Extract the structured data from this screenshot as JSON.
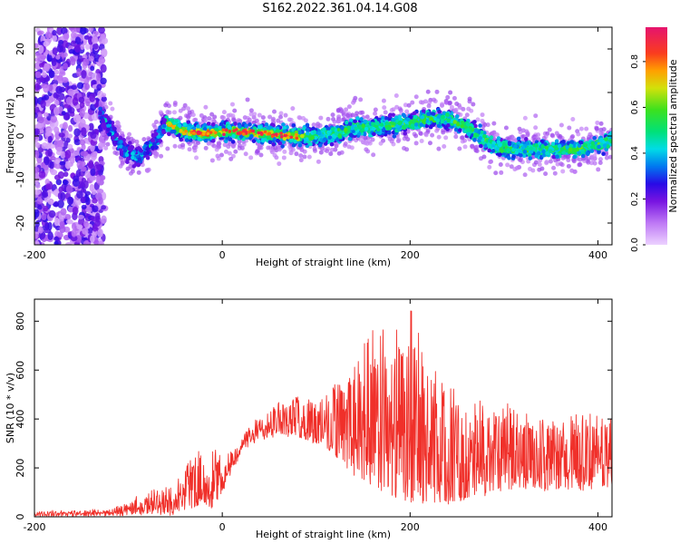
{
  "title": "S162.2022.361.04.14.G08",
  "chart_data": [
    {
      "type": "heatmap",
      "xlabel": "Height of straight line (km)",
      "ylabel": "Frequency (Hz)",
      "xlim": [
        -200,
        415
      ],
      "ylim": [
        -25,
        25
      ],
      "xticks": [
        -200,
        0,
        200,
        400
      ],
      "yticks": [
        -20,
        -10,
        0,
        10,
        20
      ],
      "colorbar": {
        "label": "Normalized spectral amplitude",
        "range": [
          0,
          0.95
        ],
        "ticks": [
          0.0,
          0.2,
          0.4,
          0.6,
          0.8
        ]
      },
      "ridge": {
        "x": [
          -130,
          -120,
          -110,
          -100,
          -90,
          -80,
          -70,
          -60,
          -50,
          -40,
          -20,
          0,
          20,
          50,
          80,
          100,
          120,
          140,
          160,
          180,
          200,
          220,
          240,
          260,
          280,
          300,
          320,
          340,
          360,
          380,
          400,
          415
        ],
        "frequency": [
          5,
          2,
          -2,
          -4,
          -5,
          -3,
          -1,
          3,
          2,
          1,
          0.5,
          1,
          1,
          0.5,
          0,
          0,
          0.5,
          2,
          2,
          2.5,
          3,
          4,
          4,
          2,
          -1,
          -3,
          -3,
          -3,
          -3,
          -3,
          -2,
          -1
        ]
      },
      "noise_region_x": [
        -200,
        -135
      ]
    },
    {
      "type": "line",
      "color": "#f0302a",
      "xlabel": "Height of straight line (km)",
      "ylabel": "SNR (10 * v/v)",
      "xlim": [
        -200,
        415
      ],
      "ylim": [
        0,
        890
      ],
      "xticks": [
        -200,
        0,
        200,
        400
      ],
      "yticks": [
        0,
        200,
        400,
        600,
        800
      ],
      "envelope": {
        "x": [
          -200,
          -120,
          -100,
          -80,
          -60,
          -40,
          -20,
          -10,
          0,
          20,
          40,
          60,
          80,
          100,
          120,
          140,
          160,
          180,
          200,
          220,
          240,
          260,
          280,
          300,
          320,
          340,
          360,
          380,
          400,
          415
        ],
        "baseline": [
          10,
          10,
          12,
          20,
          10,
          30,
          60,
          40,
          100,
          270,
          320,
          340,
          330,
          300,
          250,
          180,
          130,
          80,
          60,
          60,
          60,
          70,
          90,
          120,
          120,
          110,
          110,
          110,
          120,
          130
        ],
        "peak": [
          15,
          25,
          60,
          100,
          120,
          210,
          300,
          330,
          240,
          320,
          420,
          480,
          500,
          510,
          560,
          660,
          780,
          760,
          880,
          660,
          580,
          480,
          480,
          460,
          430,
          420,
          420,
          430,
          420,
          400
        ]
      }
    }
  ]
}
